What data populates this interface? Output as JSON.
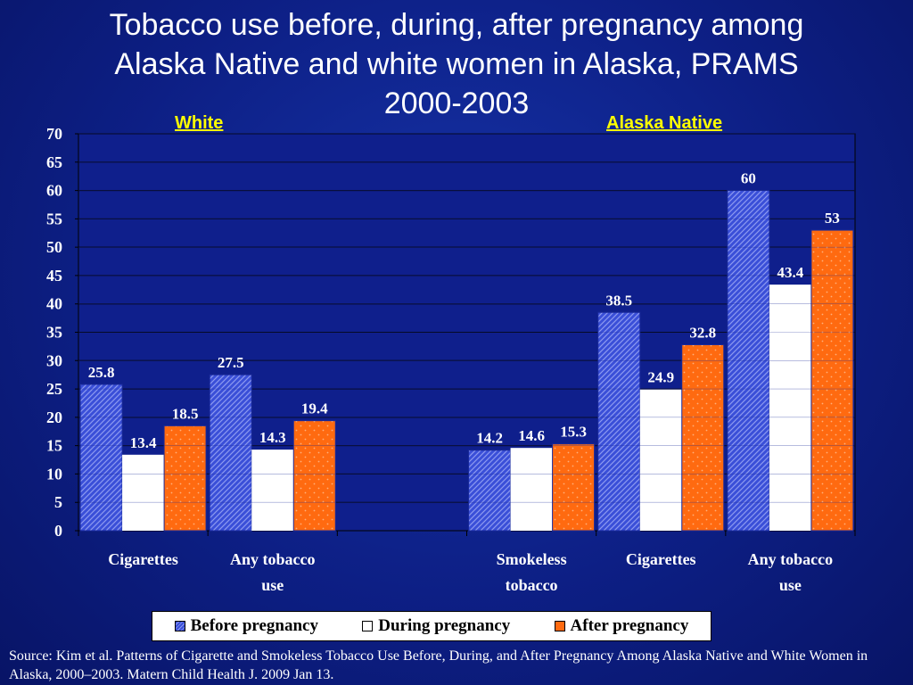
{
  "chart_data": {
    "type": "bar",
    "title": "Tobacco use before, during, after pregnancy among Alaska Native and white women in Alaska, PRAMS 2000-2003",
    "title_lines": [
      "Tobacco use before, during, after pregnancy among",
      "Alaska Native and white women in Alaska, PRAMS",
      "2000-2003"
    ],
    "group_labels": [
      "White",
      "Alaska Native"
    ],
    "categories": [
      "Cigarettes",
      "Any tobacco use",
      "",
      "Smokeless tobacco",
      "Cigarettes",
      "Any tobacco use"
    ],
    "category_lines": [
      [
        "Cigarettes"
      ],
      [
        "Any tobacco",
        "use"
      ],
      [],
      [
        "Smokeless",
        "tobacco"
      ],
      [
        "Cigarettes"
      ],
      [
        "Any tobacco",
        "use"
      ]
    ],
    "series": [
      {
        "name": "Before pregnancy",
        "values": [
          25.8,
          27.5,
          null,
          14.2,
          38.5,
          60
        ]
      },
      {
        "name": "During pregnancy",
        "values": [
          13.4,
          14.3,
          null,
          14.6,
          24.9,
          43.4
        ]
      },
      {
        "name": "After pregnancy",
        "values": [
          18.5,
          19.4,
          null,
          15.3,
          32.8,
          53
        ]
      }
    ],
    "value_labels": [
      [
        "25.8",
        "27.5",
        null,
        "14.2",
        "38.5",
        "60"
      ],
      [
        "13.4",
        "14.3",
        null,
        "14.6",
        "24.9",
        "43.4"
      ],
      [
        "18.5",
        "19.4",
        null,
        "15.3",
        "32.8",
        "53"
      ]
    ],
    "ylim": [
      0,
      70
    ],
    "yticks": [
      0,
      5,
      10,
      15,
      20,
      25,
      30,
      35,
      40,
      45,
      50,
      55,
      60,
      65,
      70
    ],
    "xlabel": "",
    "ylabel": "",
    "grid": true,
    "legend_position": "bottom",
    "colors": {
      "before_fill": "#3a4fd8",
      "before_hatch": "#8c99f0",
      "during_fill": "#ffffff",
      "after_fill": "#ff6a10",
      "after_dot": "#ffb07a",
      "background": "#0d1f85",
      "plot_background": "#0f1f8c",
      "grid": "#000000",
      "group_label": "#ffff00"
    }
  },
  "source_text": "Source: Kim et al. Patterns of Cigarette and Smokeless Tobacco Use Before, During, and After Pregnancy Among Alaska Native and White Women in Alaska, 2000–2003. Matern Child Health J. 2009 Jan 13."
}
